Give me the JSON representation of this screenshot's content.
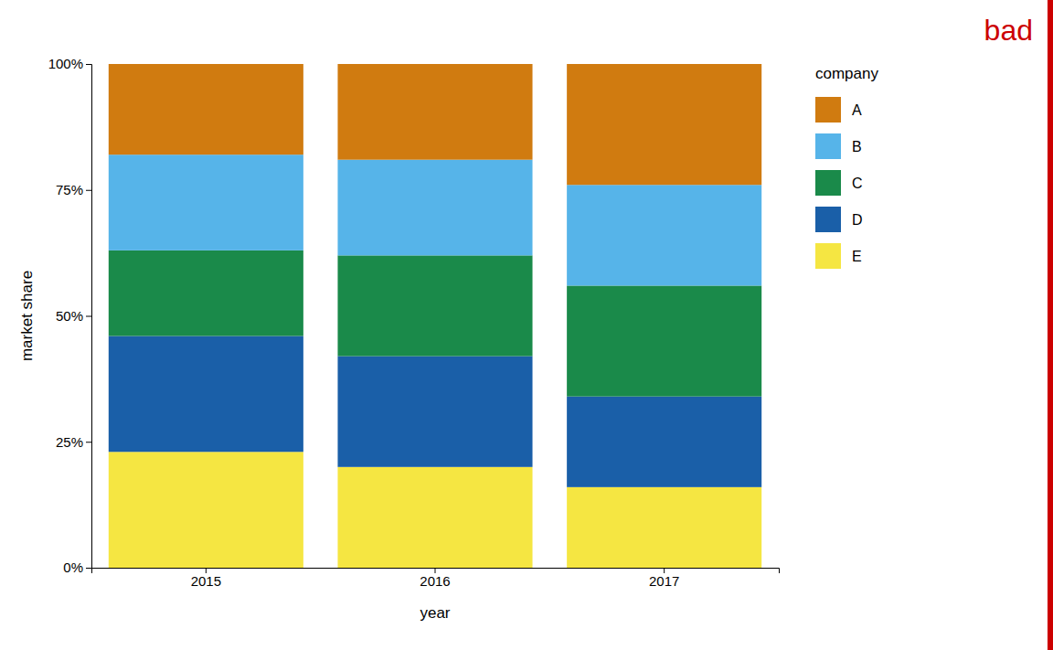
{
  "chart_data": {
    "type": "bar",
    "stacked": true,
    "grid": false,
    "legend": "right",
    "legend_title": "company",
    "x_label": "year",
    "y_label": "market share",
    "categories": [
      "2015",
      "2016",
      "2017"
    ],
    "series": [
      {
        "name": "E",
        "color": "#F5E642",
        "values": [
          0.23,
          0.2,
          0.16
        ]
      },
      {
        "name": "D",
        "color": "#1A5FA8",
        "values": [
          0.23,
          0.22,
          0.18
        ]
      },
      {
        "name": "C",
        "color": "#1A8A4A",
        "values": [
          0.17,
          0.2,
          0.22
        ]
      },
      {
        "name": "B",
        "color": "#56B4E9",
        "values": [
          0.19,
          0.19,
          0.2
        ]
      },
      {
        "name": "A",
        "color": "#D07B10",
        "values": [
          0.18,
          0.19,
          0.24
        ]
      }
    ],
    "ylim": [
      0,
      1.0
    ],
    "yticks": [
      {
        "value": 0,
        "label": "0%"
      },
      {
        "value": 0.25,
        "label": "25%"
      },
      {
        "value": 0.5,
        "label": "50%"
      },
      {
        "value": 0.75,
        "label": "75%"
      },
      {
        "value": 1.0,
        "label": "100%"
      }
    ],
    "annotations": [
      {
        "text": "bad",
        "color": "#cc0000"
      }
    ]
  }
}
